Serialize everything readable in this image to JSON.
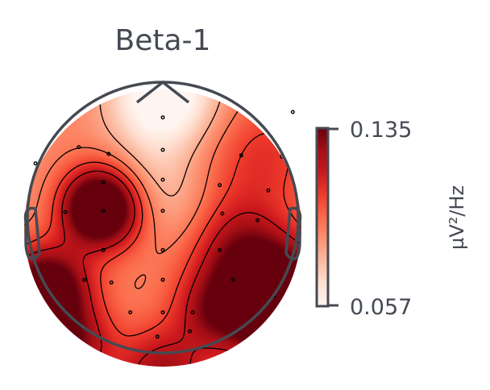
{
  "chart_data": {
    "type": "heatmap",
    "subtype": "eeg-topomap",
    "title": "Beta-1",
    "colorbar": {
      "max_label": "0.135",
      "min_label": "0.057",
      "unit_label": "µV²/Hz",
      "range": [
        0.057,
        0.135
      ],
      "colormap": "Reds"
    },
    "colors": {
      "head_outline": "#454a52",
      "contour": "#000000",
      "sensor": "#000000",
      "text": "#454a52"
    },
    "sensors": [
      [
        0.96,
        0.78
      ],
      [
        0.0,
        0.74
      ],
      [
        0.88,
        0.45
      ],
      [
        -0.4,
        0.47
      ],
      [
        0.58,
        0.46
      ],
      [
        0.0,
        0.5
      ],
      [
        -0.62,
        0.52
      ],
      [
        -0.94,
        0.4
      ],
      [
        -0.44,
        0.26
      ],
      [
        0.0,
        0.28
      ],
      [
        0.42,
        0.24
      ],
      [
        0.78,
        0.2
      ],
      [
        -0.72,
        0.04
      ],
      [
        -0.44,
        0.05
      ],
      [
        0.0,
        0.05
      ],
      [
        0.44,
        0.03
      ],
      [
        0.7,
        -0.02
      ],
      [
        -0.44,
        -0.24
      ],
      [
        0.0,
        -0.24
      ],
      [
        0.42,
        -0.24
      ],
      [
        -0.58,
        -0.46
      ],
      [
        -0.38,
        -0.48
      ],
      [
        0.0,
        -0.46
      ],
      [
        0.52,
        -0.46
      ],
      [
        0.82,
        -0.58
      ],
      [
        -0.24,
        -0.7
      ],
      [
        0.0,
        -0.7
      ],
      [
        0.22,
        -0.7
      ],
      [
        -0.04,
        -0.88
      ],
      [
        0.2,
        -0.84
      ]
    ],
    "blobs": [
      {
        "x": -0.45,
        "y": 0.15,
        "amp": 1.0,
        "sigma": 0.2
      },
      {
        "x": 0.85,
        "y": -0.55,
        "amp": 1.05,
        "sigma": 0.28
      },
      {
        "x": -0.85,
        "y": -0.45,
        "amp": 0.85,
        "sigma": 0.22
      },
      {
        "x": 0.0,
        "y": -1.05,
        "amp": 0.5,
        "sigma": 0.24
      },
      {
        "x": 0.55,
        "y": -0.15,
        "amp": 0.4,
        "sigma": 0.26
      },
      {
        "x": 0.35,
        "y": -0.6,
        "amp": 0.35,
        "sigma": 0.2
      },
      {
        "x": -0.65,
        "y": -0.85,
        "amp": 0.45,
        "sigma": 0.2
      },
      {
        "x": 0.75,
        "y": 0.5,
        "amp": 0.25,
        "sigma": 0.3
      },
      {
        "x": 0.0,
        "y": 0.95,
        "amp": -0.55,
        "sigma": 0.26
      },
      {
        "x": -0.05,
        "y": 0.35,
        "amp": -0.2,
        "sigma": 0.25
      },
      {
        "x": 0.15,
        "y": 0.05,
        "amp": -0.1,
        "sigma": 0.22
      }
    ],
    "base_level": 0.42,
    "contour_levels": [
      0.3,
      0.46,
      0.62,
      0.78
    ]
  }
}
